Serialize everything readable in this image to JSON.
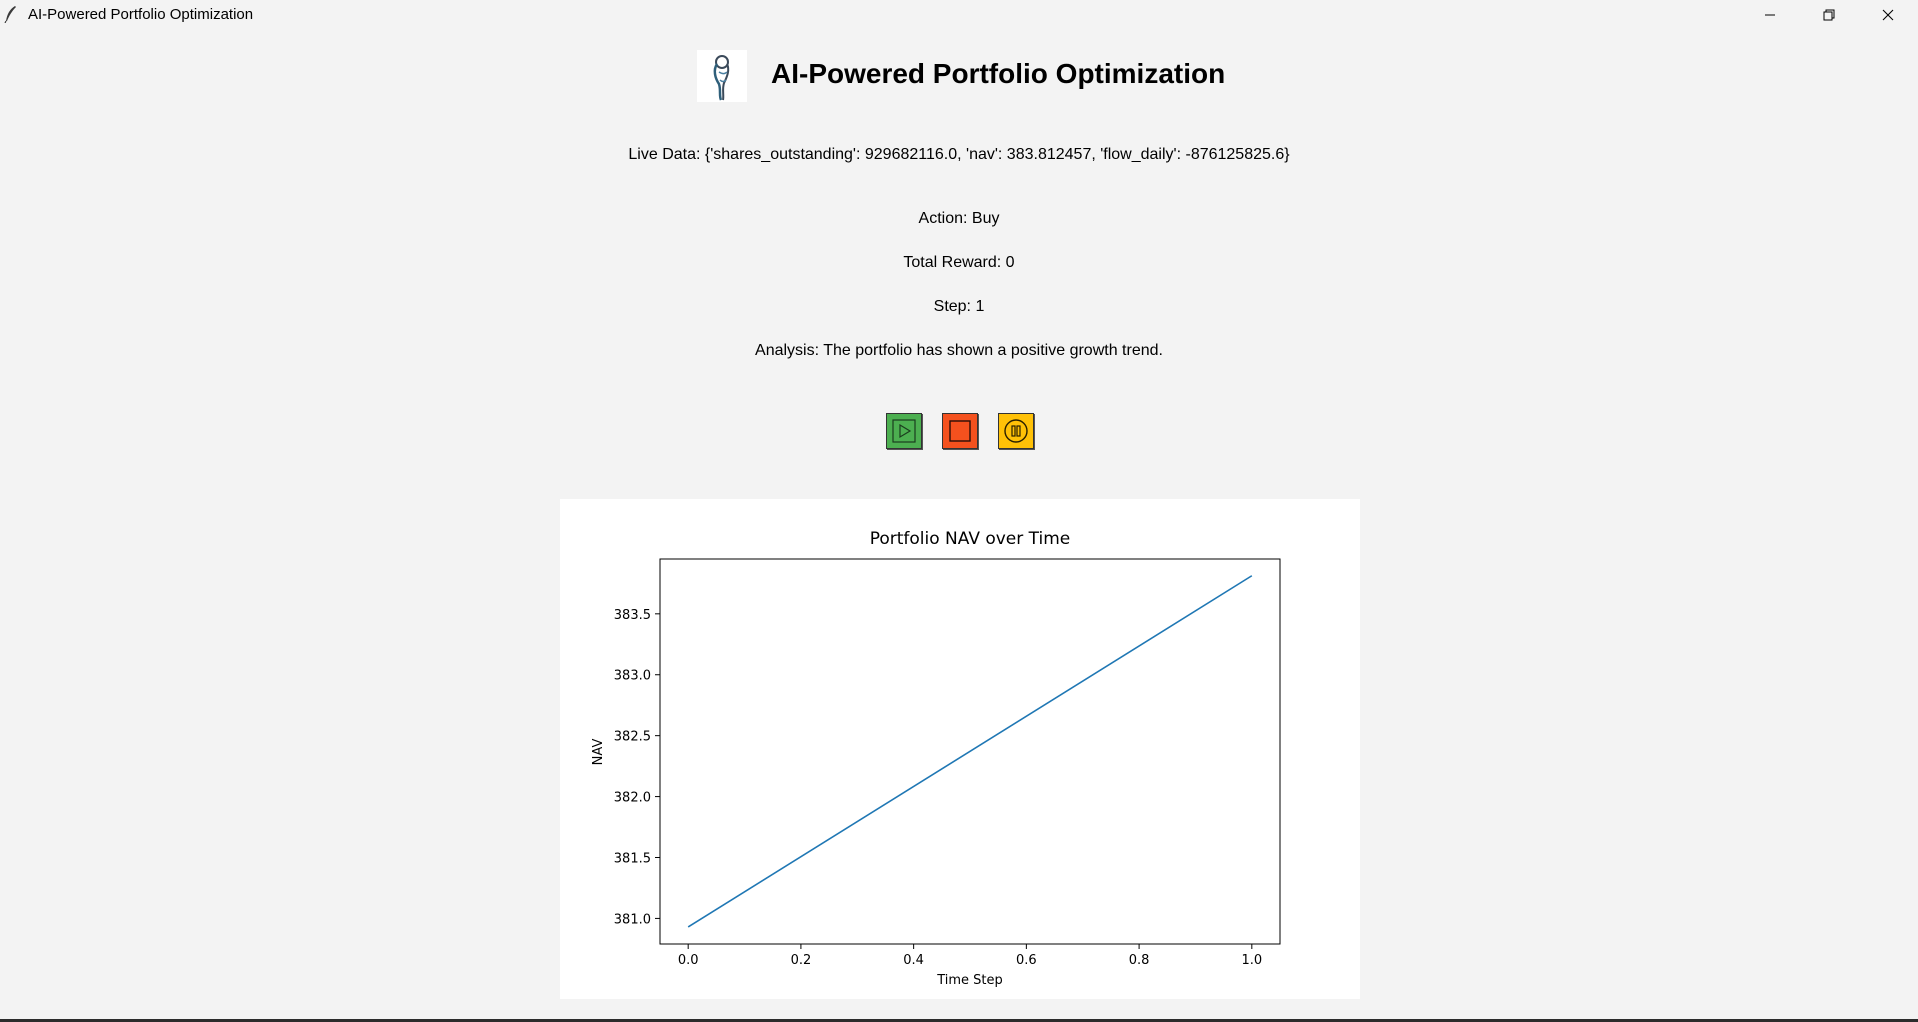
{
  "window": {
    "title": "AI-Powered Portfolio Optimization"
  },
  "header": {
    "title": "AI-Powered Portfolio Optimization"
  },
  "status": {
    "live_data": "Live Data: {'shares_outstanding': 929682116.0, 'nav': 383.812457, 'flow_daily': -876125825.6}",
    "action": "Action: Buy",
    "total_reward": "Total Reward: 0",
    "step": "Step: 1",
    "analysis": "Analysis: The portfolio has shown a positive growth trend."
  },
  "controls": {
    "play": {
      "icon": "play-icon",
      "color": "#4caf50"
    },
    "stop": {
      "icon": "stop-icon",
      "color": "#f4511e"
    },
    "pause": {
      "icon": "pause-icon",
      "color": "#ffc107"
    }
  },
  "chart_data": {
    "type": "line",
    "title": "Portfolio NAV over Time",
    "xlabel": "Time Step",
    "ylabel": "NAV",
    "x": [
      0,
      1
    ],
    "series": [
      {
        "values": [
          380.93,
          383.812457
        ],
        "color": "#1f77b4"
      }
    ],
    "xlim": [
      -0.05,
      1.05
    ],
    "ylim": [
      380.79,
      383.95
    ],
    "xticks": [
      0.0,
      0.2,
      0.4,
      0.6,
      0.8,
      1.0
    ],
    "xtick_labels": [
      "0.0",
      "0.2",
      "0.4",
      "0.6",
      "0.8",
      "1.0"
    ],
    "yticks": [
      381.0,
      381.5,
      382.0,
      382.5,
      383.0,
      383.5
    ],
    "ytick_labels": [
      "381.0",
      "381.5",
      "382.0",
      "382.5",
      "383.0",
      "383.5"
    ],
    "grid": false,
    "legend": false
  }
}
